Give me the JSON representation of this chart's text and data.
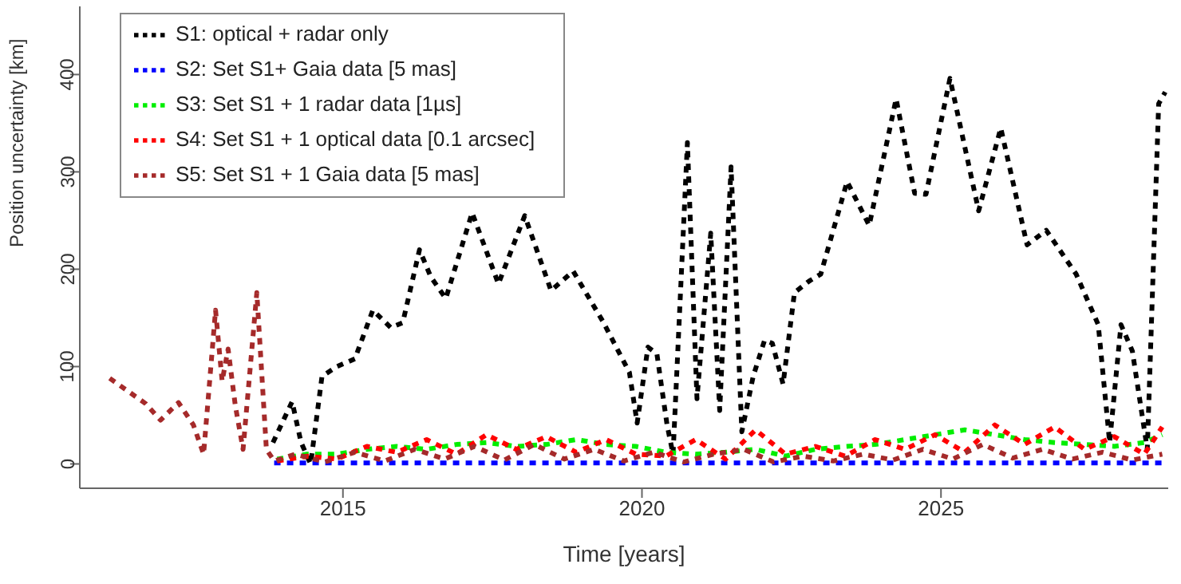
{
  "chart_data": {
    "type": "line",
    "xlabel": "Time [years]",
    "ylabel": "Position uncertainty [km]",
    "xlim": [
      2010.6,
      2028.8
    ],
    "ylim": [
      -25,
      470
    ],
    "xticks": [
      2015,
      2020,
      2025
    ],
    "yticks": [
      0,
      100,
      200,
      300,
      400
    ],
    "grid": false,
    "legend": "top left",
    "marker": "none",
    "line_style": "dashed",
    "series": [
      {
        "name": "S1: optical + radar only",
        "color": "#000000",
        "x": [
          2013.83,
          2014.15,
          2014.3,
          2014.46,
          2014.65,
          2014.9,
          2015.2,
          2015.5,
          2015.8,
          2016.0,
          2016.28,
          2016.47,
          2016.72,
          2017.16,
          2017.6,
          2018.04,
          2018.48,
          2018.85,
          2019.35,
          2019.79,
          2019.92,
          2020.1,
          2020.25,
          2020.42,
          2020.52,
          2020.76,
          2020.92,
          2021.15,
          2021.3,
          2021.49,
          2021.67,
          2021.86,
          2022.05,
          2022.18,
          2022.36,
          2022.55,
          2022.8,
          2022.99,
          2023.43,
          2023.8,
          2024.25,
          2024.56,
          2024.75,
          2025.15,
          2025.63,
          2026.0,
          2026.44,
          2026.76,
          2027.26,
          2027.63,
          2027.82,
          2028.01,
          2028.2,
          2028.45,
          2028.64,
          2028.75
        ],
        "values": [
          22,
          64,
          22,
          0,
          90,
          100,
          108,
          158,
          140,
          145,
          220,
          192,
          170,
          258,
          185,
          255,
          178,
          198,
          146,
          94,
          42,
          120,
          113,
          40,
          10,
          330,
          67,
          237,
          55,
          305,
          33,
          90,
          127,
          124,
          82,
          176,
          188,
          195,
          290,
          245,
          375,
          278,
          277,
          396,
          260,
          345,
          225,
          240,
          195,
          143,
          22,
          143,
          116,
          15,
          370,
          382
        ]
      },
      {
        "name": "S2: Set S1+ Gaia data [5 mas]",
        "color": "#0000ff",
        "x": [
          2013.85,
          2028.78
        ],
        "values": [
          1,
          1
        ]
      },
      {
        "name": "S3: Set S1 + 1 radar data [1µs]",
        "color": "#00ee00",
        "x": [
          2013.9,
          2014.4,
          2014.9,
          2015.4,
          2015.9,
          2016.4,
          2016.9,
          2017.4,
          2017.9,
          2018.4,
          2018.9,
          2019.4,
          2019.9,
          2020.4,
          2020.9,
          2021.4,
          2021.9,
          2022.4,
          2022.9,
          2023.4,
          2023.9,
          2024.4,
          2024.9,
          2025.4,
          2025.9,
          2026.4,
          2026.9,
          2027.4,
          2027.9,
          2028.4,
          2028.7
        ],
        "values": [
          5,
          10,
          10,
          15,
          18,
          15,
          20,
          22,
          18,
          20,
          25,
          20,
          18,
          12,
          10,
          12,
          15,
          8,
          15,
          18,
          20,
          25,
          30,
          35,
          30,
          25,
          22,
          20,
          18,
          22,
          30
        ]
      },
      {
        "name": "S4: Set S1 + 1 optical data [0.1 arcsec]",
        "color": "#ff0000",
        "x": [
          2013.9,
          2014.4,
          2014.9,
          2015.4,
          2015.9,
          2016.4,
          2016.9,
          2017.4,
          2017.9,
          2018.4,
          2018.9,
          2019.4,
          2019.9,
          2020.4,
          2020.9,
          2021.4,
          2021.9,
          2022.4,
          2022.9,
          2023.4,
          2023.9,
          2024.4,
          2024.9,
          2025.4,
          2025.9,
          2026.4,
          2026.9,
          2027.4,
          2027.9,
          2028.4,
          2028.7
        ],
        "values": [
          3,
          8,
          5,
          18,
          12,
          25,
          10,
          30,
          15,
          28,
          12,
          25,
          10,
          8,
          25,
          5,
          35,
          10,
          18,
          8,
          25,
          15,
          30,
          12,
          40,
          20,
          38,
          15,
          28,
          10,
          38
        ]
      },
      {
        "name": "S5: Set S1 + 1 Gaia data [5 mas]",
        "color": "#a52a2a",
        "x": [
          2011.1,
          2011.7,
          2011.95,
          2012.25,
          2012.5,
          2012.67,
          2012.87,
          2012.98,
          2013.08,
          2013.2,
          2013.33,
          2013.56,
          2013.72,
          2013.85,
          2014.2,
          2014.7,
          2015.2,
          2015.7,
          2016.2,
          2016.7,
          2017.2,
          2017.7,
          2018.2,
          2018.7,
          2019.2,
          2019.7,
          2020.2,
          2020.7,
          2021.2,
          2021.7,
          2022.2,
          2022.7,
          2023.2,
          2023.7,
          2024.2,
          2024.7,
          2025.2,
          2025.7,
          2026.2,
          2026.7,
          2027.2,
          2027.7,
          2028.2,
          2028.7
        ],
        "values": [
          88,
          62,
          45,
          63,
          40,
          10,
          158,
          85,
          118,
          60,
          15,
          176,
          15,
          3,
          10,
          2,
          12,
          3,
          15,
          5,
          18,
          4,
          20,
          5,
          15,
          3,
          12,
          2,
          10,
          15,
          2,
          8,
          3,
          10,
          4,
          15,
          5,
          20,
          6,
          15,
          5,
          12,
          4,
          10
        ]
      }
    ]
  }
}
